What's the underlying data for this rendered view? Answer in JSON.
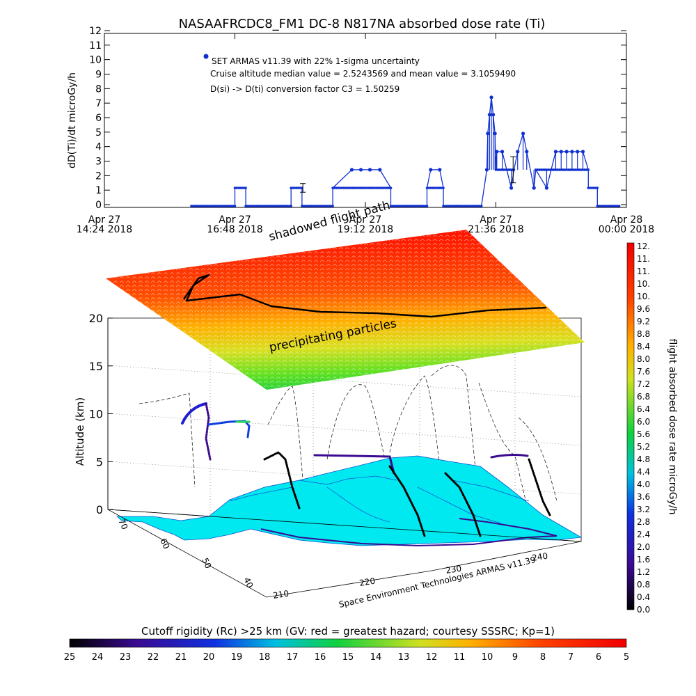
{
  "title": "NASAAFRCDC8_FM1 DC-8    N817NA absorbed dose rate (Ti)",
  "chart_data": [
    {
      "type": "scatter",
      "ylabel": "dD(Ti)/dt microGy/h",
      "ylim": [
        0,
        12
      ],
      "xlim_minutes": [
        864,
        1440
      ],
      "x_ticks": [
        {
          "l1": "Apr 27",
          "l2": "14:24 2018",
          "min": 864
        },
        {
          "l1": "Apr 27",
          "l2": "16:48 2018",
          "min": 1008
        },
        {
          "l1": "Apr 27",
          "l2": "19:12 2018",
          "min": 1152
        },
        {
          "l1": "Apr 27",
          "l2": "21:36 2018",
          "min": 1296
        },
        {
          "l1": "Apr 28",
          "l2": "00:00 2018",
          "min": 1440
        }
      ],
      "y_ticks": [
        0,
        1,
        2,
        3,
        4,
        5,
        6,
        7,
        8,
        9,
        10,
        11,
        12
      ],
      "legend": [
        "SET ARMAS v11.39 with 22% 1-sigma uncertainty",
        "Cruise altitude median value = 2.5243569 and mean value = 3.1059490",
        "D(si) -> D(ti) conversion factor C3 = 1.50259"
      ],
      "series_color": "#1030d0",
      "segments": [
        {
          "t0": 960,
          "t1": 1008,
          "v": 0.0
        },
        {
          "t0": 1008,
          "t1": 1020,
          "v": 1.25
        },
        {
          "t0": 1020,
          "t1": 1070,
          "v": 0.0
        },
        {
          "t0": 1070,
          "t1": 1082,
          "v": 1.25
        },
        {
          "t0": 1082,
          "t1": 1116,
          "v": 0.0
        },
        {
          "t0": 1116,
          "t1": 1180,
          "v": 1.25
        },
        {
          "t0": 1180,
          "t1": 1220,
          "v": 0.0
        },
        {
          "t0": 1220,
          "t1": 1238,
          "v": 1.25
        },
        {
          "t0": 1238,
          "t1": 1252,
          "v": 0.0
        },
        {
          "t0": 1252,
          "t1": 1280,
          "v": 0.0
        },
        {
          "t0": 1296,
          "t1": 1316,
          "v": 2.5
        },
        {
          "t0": 1340,
          "t1": 1398,
          "v": 2.5
        },
        {
          "t0": 1398,
          "t1": 1408,
          "v": 1.25
        },
        {
          "t0": 1408,
          "t1": 1432,
          "v": 0.0
        }
      ],
      "spikes": [
        {
          "t": 1137,
          "v": 2.5
        },
        {
          "t": 1147,
          "v": 2.5
        },
        {
          "t": 1157,
          "v": 2.5
        },
        {
          "t": 1168,
          "v": 2.5
        },
        {
          "t": 1224,
          "v": 2.5
        },
        {
          "t": 1234,
          "v": 2.5
        },
        {
          "t": 1286,
          "v": 2.5
        },
        {
          "t": 1287,
          "v": 5.0
        },
        {
          "t": 1289,
          "v": 6.3
        },
        {
          "t": 1291,
          "v": 7.5
        },
        {
          "t": 1293,
          "v": 6.3
        },
        {
          "t": 1295,
          "v": 5.0
        },
        {
          "t": 1297,
          "v": 3.75
        },
        {
          "t": 1303,
          "v": 3.75
        },
        {
          "t": 1313,
          "v": 1.25
        },
        {
          "t": 1320,
          "v": 3.75
        },
        {
          "t": 1326,
          "v": 5.0
        },
        {
          "t": 1330,
          "v": 3.75
        },
        {
          "t": 1338,
          "v": 1.25
        },
        {
          "t": 1352,
          "v": 1.25
        },
        {
          "t": 1362,
          "v": 3.75
        },
        {
          "t": 1368,
          "v": 3.75
        },
        {
          "t": 1374,
          "v": 3.75
        },
        {
          "t": 1380,
          "v": 3.75
        },
        {
          "t": 1386,
          "v": 3.75
        },
        {
          "t": 1392,
          "v": 3.75
        }
      ],
      "error_bars": [
        {
          "t": 1083,
          "v": 1.25,
          "lo": 0.95,
          "hi": 1.55
        },
        {
          "t": 1315,
          "v": 2.5,
          "lo": 1.6,
          "hi": 3.4
        }
      ]
    },
    {
      "type": "surface",
      "zlabel": "Altitude (km)",
      "z_ticks": [
        0,
        5,
        10,
        15,
        20
      ],
      "lat_ticks": [
        "70",
        "60",
        "50",
        "40"
      ],
      "lon_ticks": [
        "210",
        "220",
        "230",
        "240"
      ],
      "annotations": [
        "shadowed flight path",
        "precipitating particles"
      ],
      "credit": "Space Environment Technologies ARMAS v11.39"
    },
    {
      "type": "colorbar",
      "label": "flight absorbed dose rate microGy/h",
      "ticks": [
        "12.",
        "11.",
        "11.",
        "10.",
        "10.",
        "9.6",
        "9.2",
        "8.8",
        "8.4",
        "8.0",
        "7.6",
        "7.2",
        "6.8",
        "6.4",
        "6.0",
        "5.6",
        "5.2",
        "4.8",
        "4.4",
        "4.0",
        "3.6",
        "3.2",
        "2.8",
        "2.4",
        "2.0",
        "1.6",
        "1.2",
        "0.8",
        "0.4",
        "0.0"
      ]
    },
    {
      "type": "colorbar",
      "label": "Cutoff rigidity (Rc) >25 km (GV: red = greatest hazard; courtesy SSSRC; Kp=1)",
      "ticks": [
        "25",
        "24",
        "23",
        "22",
        "21",
        "20",
        "19",
        "18",
        "17",
        "16",
        "15",
        "14",
        "13",
        "12",
        "11",
        "10",
        "9",
        "8",
        "7",
        "6",
        "5"
      ]
    }
  ]
}
